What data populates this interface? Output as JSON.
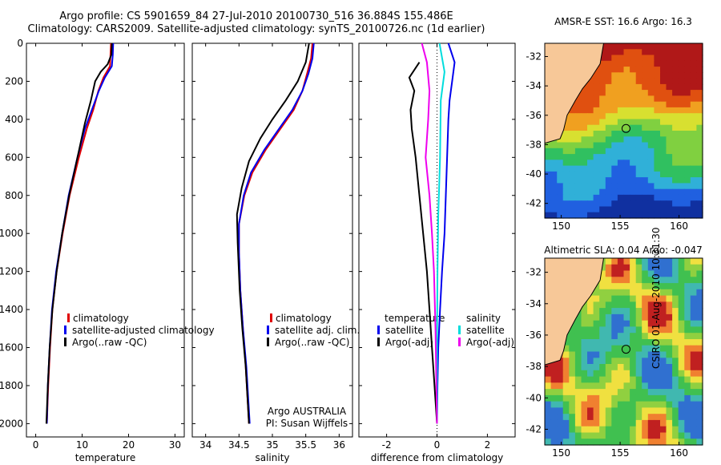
{
  "title": {
    "line1": "Argo profile: CS 5901659_84 27-Jul-2010 20100730_516 36.884S 155.486E",
    "line2": "Climatology: CARS2009. Satellite-adjusted climatology: synTS_20100726.nc (1d earlier)"
  },
  "credit": "CSIRO 01-Aug-2010 10:31:30",
  "colors": {
    "climatology": "#e00000",
    "satellite": "#0000ee",
    "argo": "#000000",
    "sal_sat": "#00dddd",
    "sal_argo": "#ee00ee"
  },
  "chart_data": [
    {
      "type": "line",
      "id": "temperature",
      "xlabel": "temperature",
      "xlim": [
        -2,
        32
      ],
      "xticks": [
        "0",
        "10",
        "20",
        "30"
      ],
      "ylim": [
        0,
        2070
      ],
      "yticks": [
        "0",
        "200",
        "400",
        "600",
        "800",
        "1000",
        "1200",
        "1400",
        "1600",
        "1800",
        "2000"
      ],
      "legend": [
        "climatology",
        "satellite-adjusted climatology",
        "Argo(..raw -QC)"
      ],
      "series": [
        {
          "name": "climatology",
          "color": "#e00000",
          "points": [
            [
              16.2,
              0
            ],
            [
              16.1,
              60
            ],
            [
              16,
              120
            ],
            [
              14.6,
              180
            ],
            [
              13.5,
              250
            ],
            [
              12.4,
              350
            ],
            [
              11,
              450
            ],
            [
              9.3,
              600
            ],
            [
              7.3,
              800
            ],
            [
              5.8,
              1000
            ],
            [
              4.5,
              1200
            ],
            [
              3.6,
              1400
            ],
            [
              3.1,
              1600
            ],
            [
              2.7,
              1800
            ],
            [
              2.4,
              2000
            ]
          ]
        },
        {
          "name": "satellite",
          "color": "#0000ee",
          "points": [
            [
              16.7,
              0
            ],
            [
              16.6,
              60
            ],
            [
              16.4,
              120
            ],
            [
              14.9,
              180
            ],
            [
              13.6,
              250
            ],
            [
              12.1,
              350
            ],
            [
              10.6,
              450
            ],
            [
              9,
              600
            ],
            [
              7.1,
              800
            ],
            [
              5.7,
              1000
            ],
            [
              4.4,
              1200
            ],
            [
              3.5,
              1400
            ],
            [
              3,
              1600
            ],
            [
              2.6,
              1800
            ],
            [
              2.4,
              2000
            ]
          ]
        },
        {
          "name": "Argo",
          "color": "#000000",
          "points": [
            [
              16.4,
              0
            ],
            [
              16.3,
              60
            ],
            [
              15.5,
              110
            ],
            [
              14,
              150
            ],
            [
              12.8,
              200
            ],
            [
              11.9,
              300
            ],
            [
              10.6,
              420
            ],
            [
              9,
              600
            ],
            [
              7.2,
              800
            ],
            [
              5.7,
              1000
            ],
            [
              4.5,
              1200
            ],
            [
              3.6,
              1400
            ],
            [
              3,
              1600
            ],
            [
              2.6,
              1800
            ],
            [
              2.3,
              2000
            ]
          ]
        }
      ]
    },
    {
      "type": "line",
      "id": "salinity",
      "xlabel": "salinity",
      "xlim": [
        33.8,
        36.2
      ],
      "xticks": [
        "34",
        "34.5",
        "35",
        "35.5",
        "36"
      ],
      "ylim": [
        0,
        2070
      ],
      "legend": [
        "climatology",
        "satellite adj. clim.",
        "Argo(..raw -QC)"
      ],
      "annotation": [
        "Argo AUSTRALIA",
        "PI: Susan Wijffels"
      ],
      "series": [
        {
          "name": "climatology",
          "color": "#e00000",
          "points": [
            [
              35.6,
              0
            ],
            [
              35.58,
              80
            ],
            [
              35.52,
              160
            ],
            [
              35.45,
              250
            ],
            [
              35.32,
              350
            ],
            [
              35.12,
              450
            ],
            [
              34.9,
              560
            ],
            [
              34.7,
              680
            ],
            [
              34.58,
              800
            ],
            [
              34.5,
              950
            ],
            [
              34.5,
              1100
            ],
            [
              34.52,
              1300
            ],
            [
              34.56,
              1500
            ],
            [
              34.6,
              1700
            ],
            [
              34.65,
              2000
            ]
          ]
        },
        {
          "name": "satellite",
          "color": "#0000ee",
          "points": [
            [
              35.62,
              0
            ],
            [
              35.6,
              80
            ],
            [
              35.54,
              160
            ],
            [
              35.45,
              250
            ],
            [
              35.3,
              350
            ],
            [
              35.1,
              450
            ],
            [
              34.88,
              560
            ],
            [
              34.68,
              680
            ],
            [
              34.57,
              800
            ],
            [
              34.5,
              950
            ],
            [
              34.5,
              1100
            ],
            [
              34.52,
              1300
            ],
            [
              34.56,
              1500
            ],
            [
              34.61,
              1700
            ],
            [
              34.66,
              2000
            ]
          ]
        },
        {
          "name": "Argo",
          "color": "#000000",
          "points": [
            [
              35.55,
              0
            ],
            [
              35.5,
              100
            ],
            [
              35.38,
              200
            ],
            [
              35.2,
              300
            ],
            [
              35,
              400
            ],
            [
              34.82,
              500
            ],
            [
              34.65,
              620
            ],
            [
              34.54,
              760
            ],
            [
              34.47,
              900
            ],
            [
              34.48,
              1050
            ],
            [
              34.51,
              1300
            ],
            [
              34.55,
              1500
            ],
            [
              34.6,
              1700
            ],
            [
              34.65,
              2000
            ]
          ]
        }
      ]
    },
    {
      "type": "line",
      "id": "difference",
      "xlabel": "difference from climatology",
      "xlim": [
        -3.1,
        3.1
      ],
      "xticks": [
        "-2",
        "0",
        "2"
      ],
      "ylim": [
        0,
        2070
      ],
      "legend_temperature": [
        "temperature",
        "satellite",
        "Argo(-adj)"
      ],
      "legend_salinity": [
        "salinity",
        "satellite",
        "Argo(-adj)"
      ],
      "series": [
        {
          "name": "temp satellite",
          "color": "#0000ee",
          "points": [
            [
              0.45,
              0
            ],
            [
              0.7,
              100
            ],
            [
              0.6,
              200
            ],
            [
              0.5,
              300
            ],
            [
              0.45,
              400
            ],
            [
              0.4,
              600
            ],
            [
              0.35,
              800
            ],
            [
              0.3,
              1000
            ],
            [
              0.2,
              1200
            ],
            [
              0.12,
              1400
            ],
            [
              0.05,
              1600
            ],
            [
              0.02,
              1800
            ],
            [
              0,
              2000
            ]
          ]
        },
        {
          "name": "temp Argo",
          "color": "#000000",
          "points": [
            [
              -0.7,
              100
            ],
            [
              -1.1,
              180
            ],
            [
              -0.9,
              250
            ],
            [
              -1.05,
              350
            ],
            [
              -1,
              450
            ],
            [
              -0.85,
              600
            ],
            [
              -0.7,
              800
            ],
            [
              -0.55,
              1000
            ],
            [
              -0.4,
              1200
            ],
            [
              -0.3,
              1400
            ],
            [
              -0.2,
              1600
            ],
            [
              -0.1,
              1800
            ],
            [
              0,
              2000
            ]
          ]
        },
        {
          "name": "sal satellite",
          "color": "#00dddd",
          "points": [
            [
              0.1,
              0
            ],
            [
              0.3,
              150
            ],
            [
              0.15,
              300
            ],
            [
              0.12,
              600
            ],
            [
              0.05,
              900
            ],
            [
              0.02,
              1200
            ],
            [
              0,
              1600
            ],
            [
              0,
              2000
            ]
          ]
        },
        {
          "name": "sal Argo",
          "color": "#ee00ee",
          "points": [
            [
              -0.6,
              0
            ],
            [
              -0.4,
              100
            ],
            [
              -0.3,
              250
            ],
            [
              -0.35,
              400
            ],
            [
              -0.45,
              600
            ],
            [
              -0.3,
              800
            ],
            [
              -0.2,
              1000
            ],
            [
              -0.12,
              1200
            ],
            [
              -0.06,
              1500
            ],
            [
              0,
              2000
            ]
          ]
        }
      ]
    },
    {
      "type": "heatmap",
      "id": "sst_map",
      "title": "AMSR-E SST: 16.6 Argo: 16.3",
      "xticks": [
        "150",
        "155",
        "160"
      ],
      "yticks": [
        "-32",
        "-34",
        "-36",
        "-38",
        "-40",
        "-42"
      ],
      "xlim": [
        148.6,
        162
      ],
      "ylim": [
        -43,
        -31.1
      ],
      "argo_position": [
        155.5,
        -36.9
      ]
    },
    {
      "type": "heatmap",
      "id": "sla_map",
      "title": "Altimetric SLA: 0.04 Argo: -0.047",
      "xticks": [
        "150",
        "155",
        "160"
      ],
      "yticks": [
        "-32",
        "-34",
        "-36",
        "-38",
        "-40",
        "-42"
      ],
      "xlim": [
        148.6,
        162
      ],
      "ylim": [
        -43,
        -31.1
      ],
      "argo_position": [
        155.5,
        -36.9
      ]
    }
  ]
}
